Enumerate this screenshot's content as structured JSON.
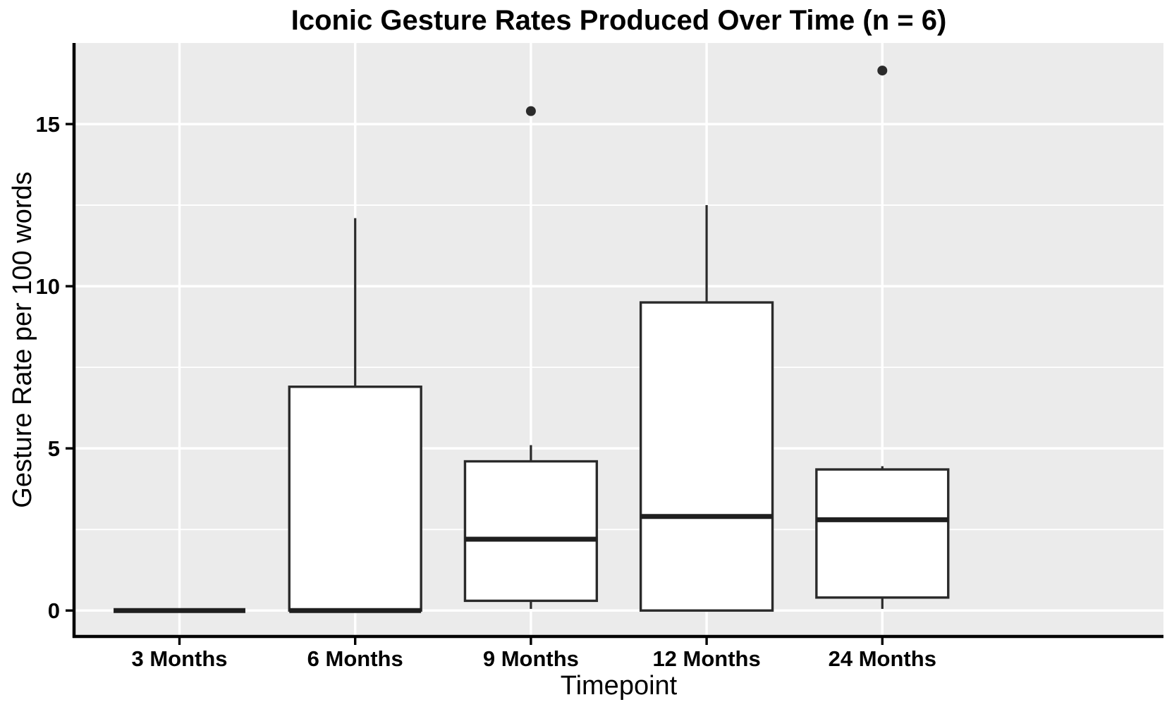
{
  "figure": {
    "title": "Iconic Gesture Rates Produced Over Time (n = 6)",
    "x_axis_label": "Timepoint",
    "y_axis_label": "Gesture Rate per 100 words"
  },
  "chart_data": {
    "type": "boxplot",
    "title": "Iconic Gesture Rates Produced Over Time (n = 6)",
    "xlabel": "Timepoint",
    "ylabel": "Gesture Rate per 100 words",
    "categories": [
      "3 Months",
      "6 Months",
      "9 Months",
      "12 Months",
      "24 Months"
    ],
    "series": [
      {
        "label": "3 Months",
        "whisker_low": 0,
        "q1": 0,
        "median": 0,
        "q3": 0,
        "whisker_high": 0,
        "outliers": []
      },
      {
        "label": "6 Months",
        "whisker_low": 0,
        "q1": 0,
        "median": 0,
        "q3": 6.9,
        "whisker_high": 12.1,
        "outliers": []
      },
      {
        "label": "9 Months",
        "whisker_low": 0.05,
        "q1": 0.3,
        "median": 2.2,
        "q3": 4.6,
        "whisker_high": 5.1,
        "outliers": [
          15.4
        ]
      },
      {
        "label": "12 Months",
        "whisker_low": 0,
        "q1": 0,
        "median": 2.9,
        "q3": 9.5,
        "whisker_high": 12.5,
        "outliers": []
      },
      {
        "label": "24 Months",
        "whisker_low": 0.05,
        "q1": 0.4,
        "median": 2.8,
        "q3": 4.35,
        "whisker_high": 4.45,
        "outliers": [
          16.65
        ]
      }
    ],
    "y_ticks": [
      0,
      5,
      10,
      15
    ],
    "y_minor_gridlines": [
      2.5,
      7.5,
      12.5
    ],
    "ylim": [
      -0.8,
      17.5
    ],
    "grid": "white major+minor horizontal, white major vertical at categories",
    "legend_position": "none",
    "colors": {
      "panel_background": "#EBEBEB",
      "gridline": "#FFFFFF",
      "box_stroke": "#2A2A2A",
      "box_fill": "#FFFFFF",
      "median": "#1F1F1F",
      "outlier": "#2B2B2B",
      "axis_line": "#000000",
      "tick_label": "#000000"
    }
  }
}
